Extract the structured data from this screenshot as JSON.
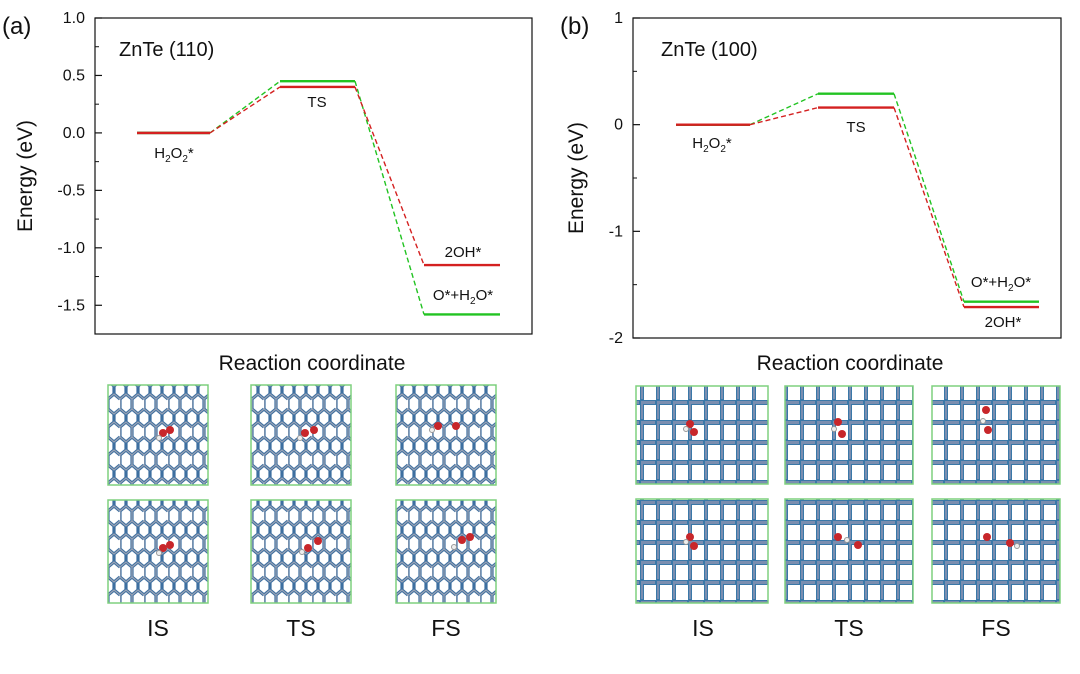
{
  "chart_data": [
    {
      "type": "line",
      "panel_label": "(a)",
      "title": "ZnTe (110)",
      "xlabel": "Reaction coordinate",
      "ylabel": "Energy (eV)",
      "ylim": [
        -1.75,
        1.0
      ],
      "yticks": [
        "1.0",
        "0.5",
        "0.0",
        "-0.5",
        "-1.0",
        "-1.5"
      ],
      "yticks_values": [
        1.0,
        0.5,
        0.0,
        -0.5,
        -1.0,
        -1.5
      ],
      "states": [
        "IS",
        "TS",
        "FS"
      ],
      "series": [
        {
          "color": "#1a1a1a",
          "values": [
            0.0,
            null,
            null
          ]
        },
        {
          "color": "#22c322",
          "values": [
            0.0,
            0.45,
            -1.58
          ]
        },
        {
          "color": "#d42020",
          "values": [
            0.0,
            0.4,
            -1.15
          ]
        }
      ],
      "annotations": [
        {
          "text": "H2O2*",
          "main": "H",
          "sub1": "2",
          "mid": "O",
          "sub2": "2",
          "end": "*"
        },
        {
          "text": "TS"
        },
        {
          "text": "2OH*"
        },
        {
          "text": "O*+H2O*",
          "main": "O*+H",
          "sub1": "2",
          "end": "O*"
        }
      ],
      "structure_labels": [
        "IS",
        "TS",
        "FS"
      ]
    },
    {
      "type": "line",
      "panel_label": "(b)",
      "title": "ZnTe (100)",
      "xlabel": "Reaction coordinate",
      "ylabel": "Energy (eV)",
      "ylim": [
        -2.0,
        1.0
      ],
      "yticks": [
        "1",
        "0",
        "-1",
        "-2"
      ],
      "yticks_values": [
        1,
        0,
        -1,
        -2
      ],
      "states": [
        "IS",
        "TS",
        "FS"
      ],
      "series": [
        {
          "color": "#1a1a1a",
          "values": [
            0.0,
            null,
            null
          ]
        },
        {
          "color": "#22c322",
          "values": [
            0.0,
            0.29,
            -1.66
          ]
        },
        {
          "color": "#d42020",
          "values": [
            0.0,
            0.16,
            -1.71
          ]
        }
      ],
      "annotations": [
        {
          "text": "H2O2*",
          "main": "H",
          "sub1": "2",
          "mid": "O",
          "sub2": "2",
          "end": "*"
        },
        {
          "text": "TS"
        },
        {
          "text": "O*+H2O*",
          "main": "O*+H",
          "sub1": "2",
          "end": "O*"
        },
        {
          "text": "2OH*"
        }
      ],
      "structure_labels": [
        "IS",
        "TS",
        "FS"
      ]
    }
  ]
}
